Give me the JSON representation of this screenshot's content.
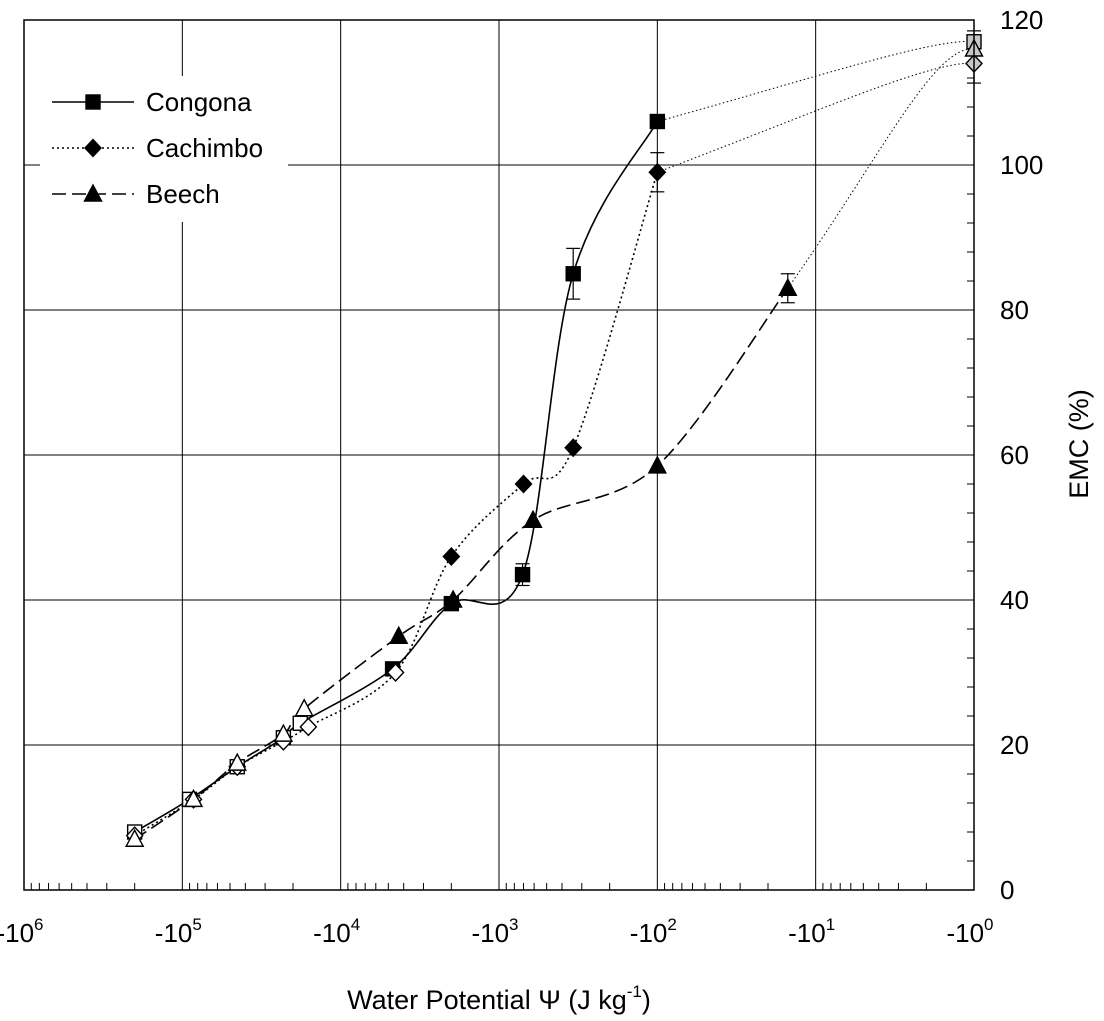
{
  "chart_data": {
    "type": "scatter",
    "xlabel": "Water Potential Ψ (J kg",
    "xlabel_sup": "-1",
    "xlabel_end": ")",
    "ylabel": "EMC (%)",
    "x_scale": "log (negative values)",
    "xlim": [
      -1000000,
      -1
    ],
    "ylim": [
      0,
      120
    ],
    "x_ticks": [
      {
        "value": -1000000,
        "base": "-10",
        "exp": "6"
      },
      {
        "value": -100000,
        "base": "-10",
        "exp": "5"
      },
      {
        "value": -10000,
        "base": "-10",
        "exp": "4"
      },
      {
        "value": -1000,
        "base": "-10",
        "exp": "3"
      },
      {
        "value": -100,
        "base": "-10",
        "exp": "2"
      },
      {
        "value": -10,
        "base": "-10",
        "exp": "1"
      },
      {
        "value": -1,
        "base": "-10",
        "exp": "0"
      }
    ],
    "y_ticks": [
      "0",
      "20",
      "40",
      "60",
      "80",
      "100",
      "120"
    ],
    "y_axis_side": "right",
    "grid": true,
    "legend_position": "top-left",
    "series": [
      {
        "name": "Congona",
        "marker": "square",
        "line": "solid",
        "points": [
          {
            "x": -200000,
            "y": 8,
            "filled": false
          },
          {
            "x": -90000,
            "y": 12.5,
            "filled": false
          },
          {
            "x": -45000,
            "y": 17,
            "filled": false
          },
          {
            "x": -23000,
            "y": 21,
            "filled": false
          },
          {
            "x": -18000,
            "y": 23,
            "filled": false
          },
          {
            "x": -4700,
            "y": 30.5,
            "filled": true
          },
          {
            "x": -2000,
            "y": 39.5,
            "filled": true
          },
          {
            "x": -710,
            "y": 43.5,
            "filled": true,
            "err": 1.5
          },
          {
            "x": -340,
            "y": 85,
            "filled": true,
            "err": 3.5
          },
          {
            "x": -100,
            "y": 106,
            "filled": true
          },
          {
            "x": -1,
            "y": 117,
            "filled": "gray",
            "err": 1.5
          }
        ]
      },
      {
        "name": "Cachimbo",
        "marker": "diamond",
        "line": "dotted",
        "points": [
          {
            "x": -200000,
            "y": 7.5,
            "filled": false
          },
          {
            "x": -85000,
            "y": 12.5,
            "filled": false
          },
          {
            "x": -45000,
            "y": 17,
            "filled": false
          },
          {
            "x": -23000,
            "y": 20.5,
            "filled": false
          },
          {
            "x": -16000,
            "y": 22.5,
            "filled": false
          },
          {
            "x": -4500,
            "y": 30,
            "filled": false
          },
          {
            "x": -2000,
            "y": 46,
            "filled": true
          },
          {
            "x": -700,
            "y": 56,
            "filled": true
          },
          {
            "x": -340,
            "y": 61,
            "filled": true
          },
          {
            "x": -100,
            "y": 99,
            "filled": true,
            "err": 2.7
          },
          {
            "x": -1,
            "y": 114,
            "filled": "gray",
            "err": 2.7
          }
        ]
      },
      {
        "name": "Beech",
        "marker": "triangle",
        "line": "dashed",
        "points": [
          {
            "x": -200000,
            "y": 7,
            "filled": false
          },
          {
            "x": -85000,
            "y": 12.5,
            "filled": false
          },
          {
            "x": -45000,
            "y": 17.5,
            "filled": false
          },
          {
            "x": -23000,
            "y": 21.5,
            "filled": false
          },
          {
            "x": -17000,
            "y": 25,
            "filled": false
          },
          {
            "x": -4300,
            "y": 35,
            "filled": true
          },
          {
            "x": -1950,
            "y": 40,
            "filled": true
          },
          {
            "x": -610,
            "y": 51,
            "filled": true
          },
          {
            "x": -100,
            "y": 58.5,
            "filled": true
          },
          {
            "x": -15,
            "y": 83,
            "filled": true,
            "err": 2
          },
          {
            "x": -1,
            "y": 116,
            "filled": "gray"
          }
        ]
      }
    ]
  }
}
